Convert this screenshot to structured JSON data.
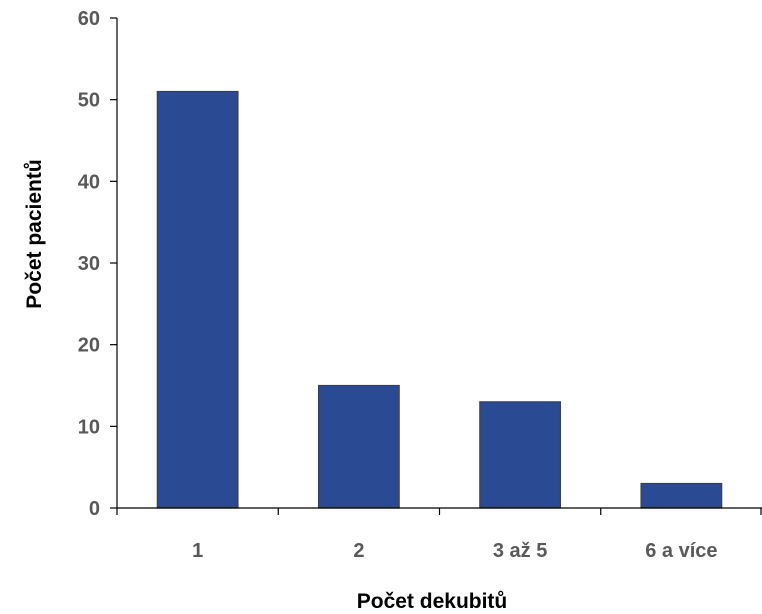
{
  "chart_data": {
    "type": "bar",
    "categories": [
      "1",
      "2",
      "3 až 5",
      "6 a více"
    ],
    "values": [
      51,
      15,
      13,
      3
    ],
    "xlabel": "Počet dekubitů",
    "ylabel": "Počet pacientů",
    "ylim": [
      0,
      60
    ],
    "yticks": [
      "0",
      "10",
      "20",
      "30",
      "40",
      "50",
      "60"
    ],
    "grid": false,
    "legend": "none",
    "bar_color": "#2b4a94"
  }
}
